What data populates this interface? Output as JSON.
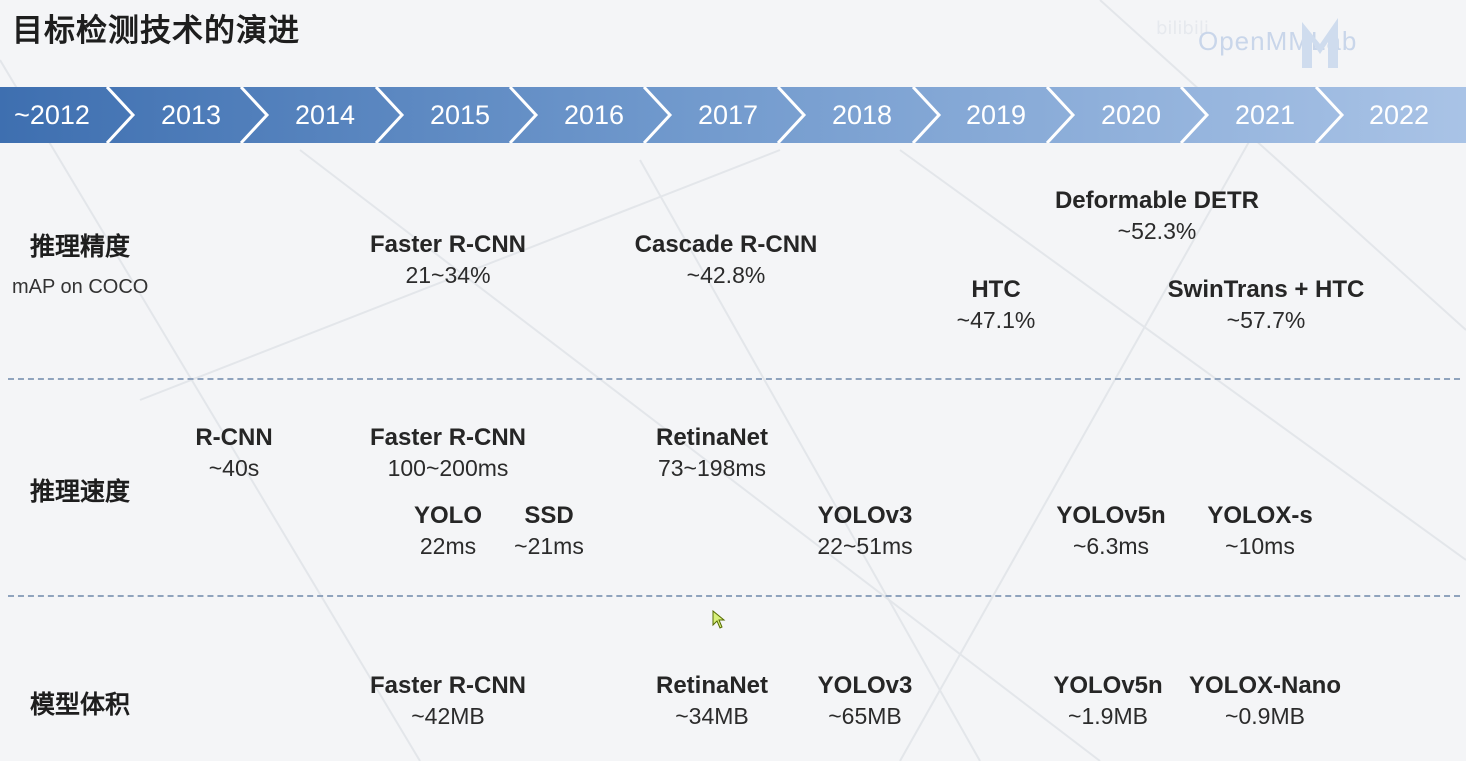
{
  "slide": {
    "title": "目标检测技术的演进"
  },
  "logo": {
    "text": "OpenMMLab",
    "watermark": "bilibili"
  },
  "timeline": {
    "years": [
      "~2012",
      "2013",
      "2014",
      "2015",
      "2016",
      "2017",
      "2018",
      "2019",
      "2020",
      "2021",
      "2022"
    ]
  },
  "rows": {
    "accuracy": {
      "label": "推理精度",
      "sublabel": "mAP on COCO",
      "items": [
        {
          "name": "Faster R-CNN",
          "value": "21~34%"
        },
        {
          "name": "Cascade R-CNN",
          "value": "~42.8%"
        },
        {
          "name": "HTC",
          "value": "~47.1%"
        },
        {
          "name": "Deformable DETR",
          "value": "~52.3%"
        },
        {
          "name": "SwinTrans + HTC",
          "value": "~57.7%"
        }
      ]
    },
    "speed": {
      "label": "推理速度",
      "items": [
        {
          "name": "R-CNN",
          "value": "~40s"
        },
        {
          "name": "Faster R-CNN",
          "value": "100~200ms"
        },
        {
          "name": "YOLO",
          "value": "22ms"
        },
        {
          "name": "SSD",
          "value": "~21ms"
        },
        {
          "name": "RetinaNet",
          "value": "73~198ms"
        },
        {
          "name": "YOLOv3",
          "value": "22~51ms"
        },
        {
          "name": "YOLOv5n",
          "value": "~6.3ms"
        },
        {
          "name": "YOLOX-s",
          "value": "~10ms"
        }
      ]
    },
    "size": {
      "label": "模型体积",
      "items": [
        {
          "name": "Faster R-CNN",
          "value": "~42MB"
        },
        {
          "name": "RetinaNet",
          "value": "~34MB"
        },
        {
          "name": "YOLOv3",
          "value": "~65MB"
        },
        {
          "name": "YOLOv5n",
          "value": "~1.9MB"
        },
        {
          "name": "YOLOX-Nano",
          "value": "~0.9MB"
        }
      ]
    }
  },
  "colors": {
    "timeline_light": "#b8cde9",
    "timeline_dark": "#4a78b5",
    "divider": "#8fa3bd"
  }
}
